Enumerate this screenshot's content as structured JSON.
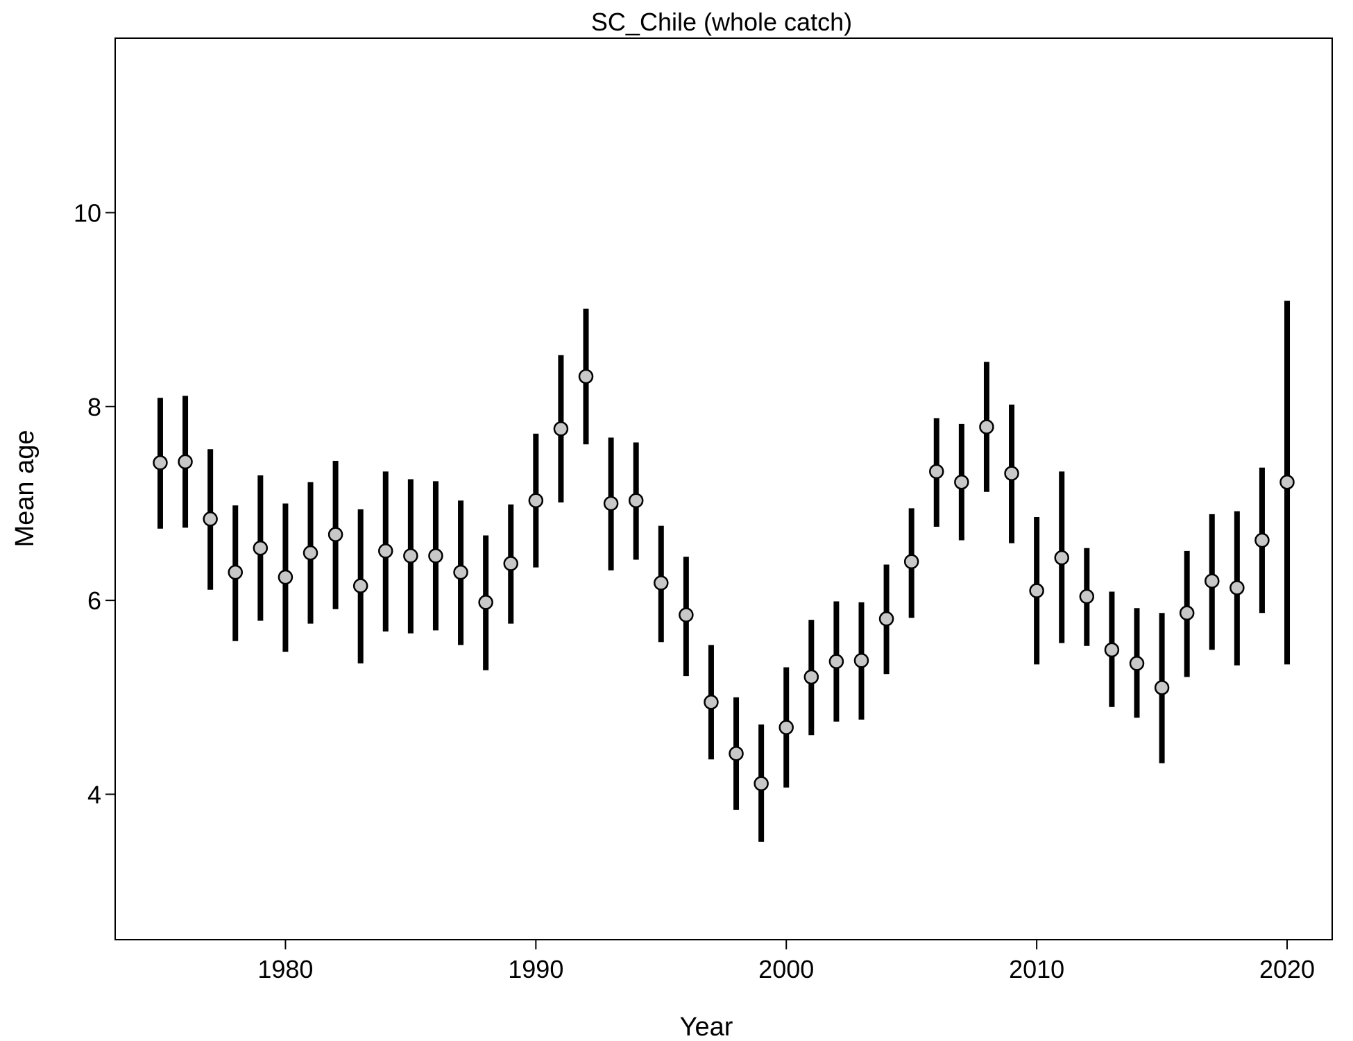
{
  "chart_data": {
    "type": "scatter",
    "title": "SC_Chile (whole catch)",
    "xlabel": "Year",
    "ylabel": "Mean age",
    "xlim": [
      1973.2,
      2021.8
    ],
    "ylim": [
      2.5,
      11.8
    ],
    "xticks": [
      1980,
      1990,
      2000,
      2010,
      2020
    ],
    "yticks": [
      4,
      6,
      8,
      10
    ],
    "grid": false,
    "legend": "none",
    "colors": {
      "point_fill": "#c8c8c8",
      "point_stroke": "#000000",
      "errorbar": "#000000"
    },
    "series": [
      {
        "x": [
          1975,
          1976,
          1977,
          1978,
          1979,
          1980,
          1981,
          1982,
          1983,
          1984,
          1985,
          1986,
          1987,
          1988,
          1989,
          1990,
          1991,
          1992,
          1993,
          1994,
          1995,
          1996,
          1997,
          1998,
          1999,
          2000,
          2001,
          2002,
          2003,
          2004,
          2005,
          2006,
          2007,
          2008,
          2009,
          2010,
          2011,
          2012,
          2013,
          2014,
          2015,
          2016,
          2017,
          2018,
          2019,
          2020
        ],
        "y": [
          7.42,
          7.43,
          6.84,
          6.29,
          6.54,
          6.24,
          6.49,
          6.68,
          6.15,
          6.51,
          6.46,
          6.46,
          6.29,
          5.98,
          6.38,
          7.03,
          7.77,
          8.31,
          7.0,
          7.03,
          6.18,
          5.85,
          4.95,
          4.42,
          4.11,
          4.69,
          5.21,
          5.37,
          5.38,
          5.81,
          6.4,
          7.33,
          7.22,
          7.79,
          7.31,
          6.1,
          6.44,
          6.04,
          5.49,
          5.35,
          5.1,
          5.87,
          6.2,
          6.13,
          6.62,
          7.22
        ],
        "low": [
          6.74,
          6.75,
          6.11,
          5.58,
          5.79,
          5.47,
          5.76,
          5.91,
          5.35,
          5.68,
          5.66,
          5.69,
          5.54,
          5.28,
          5.76,
          6.34,
          7.01,
          7.61,
          6.31,
          6.42,
          5.57,
          5.22,
          4.36,
          3.84,
          3.51,
          4.07,
          4.61,
          4.75,
          4.77,
          5.24,
          5.82,
          6.76,
          6.62,
          7.12,
          6.59,
          5.34,
          5.56,
          5.53,
          4.9,
          4.79,
          4.32,
          5.21,
          5.49,
          5.33,
          5.87,
          5.34
        ],
        "high": [
          8.09,
          8.11,
          7.56,
          6.98,
          7.29,
          7.0,
          7.22,
          7.44,
          6.94,
          7.33,
          7.25,
          7.23,
          7.03,
          6.67,
          6.99,
          7.72,
          8.53,
          9.01,
          7.68,
          7.63,
          6.77,
          6.45,
          5.54,
          5.0,
          4.72,
          5.31,
          5.8,
          5.99,
          5.98,
          6.37,
          6.95,
          7.88,
          7.82,
          8.46,
          8.02,
          6.86,
          7.33,
          6.54,
          6.09,
          5.92,
          5.87,
          6.51,
          6.89,
          6.92,
          7.37,
          9.09
        ]
      }
    ]
  }
}
